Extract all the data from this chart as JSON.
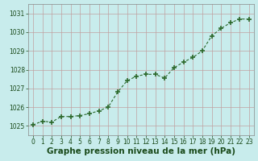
{
  "x": [
    0,
    1,
    2,
    3,
    4,
    5,
    6,
    7,
    8,
    9,
    10,
    11,
    12,
    13,
    14,
    15,
    16,
    17,
    18,
    19,
    20,
    21,
    22,
    23
  ],
  "y": [
    1025.05,
    1025.25,
    1025.2,
    1025.5,
    1025.5,
    1025.55,
    1025.65,
    1025.8,
    1026.0,
    1026.8,
    1027.4,
    1027.65,
    1027.75,
    1027.75,
    1027.55,
    1028.1,
    1028.4,
    1028.65,
    1029.0,
    1029.8,
    1030.2,
    1030.5,
    1030.7,
    1030.7
  ],
  "line_color": "#2d6a2d",
  "marker_color": "#2d6a2d",
  "bg_color": "#c8ecec",
  "grid_color_v": "#c0a0a0",
  "grid_color_h": "#c0a0a0",
  "xlabel": "Graphe pression niveau de la mer (hPa)",
  "xlabel_color": "#1a4a1a",
  "ylim": [
    1024.5,
    1031.5
  ],
  "xlim": [
    -0.5,
    23.5
  ],
  "yticks": [
    1025,
    1026,
    1027,
    1028,
    1029,
    1030,
    1031
  ],
  "xticks": [
    0,
    1,
    2,
    3,
    4,
    5,
    6,
    7,
    8,
    9,
    10,
    11,
    12,
    13,
    14,
    15,
    16,
    17,
    18,
    19,
    20,
    21,
    22,
    23
  ],
  "tick_fontsize": 5.5,
  "xlabel_fontsize": 7.5
}
